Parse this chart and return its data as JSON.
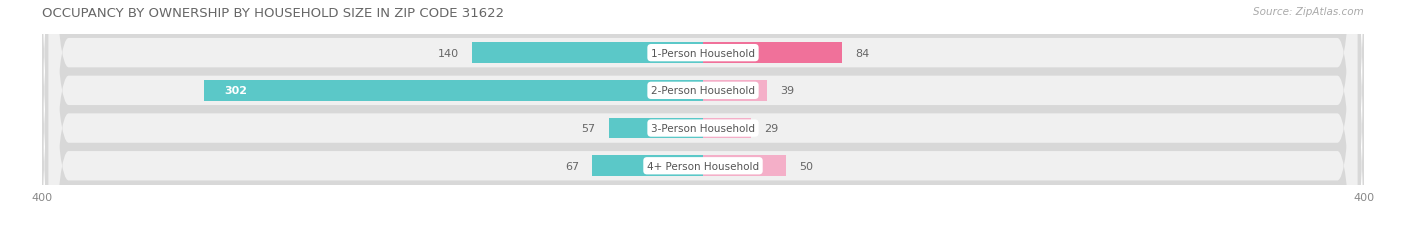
{
  "title": "OCCUPANCY BY OWNERSHIP BY HOUSEHOLD SIZE IN ZIP CODE 31622",
  "source": "Source: ZipAtlas.com",
  "categories": [
    "1-Person Household",
    "2-Person Household",
    "3-Person Household",
    "4+ Person Household"
  ],
  "owner_values": [
    140,
    302,
    57,
    67
  ],
  "renter_values": [
    84,
    39,
    29,
    50
  ],
  "owner_color": "#5bc8c8",
  "renter_color": "#f0719a",
  "renter_color_light": "#f4afc8",
  "axis_max": 400,
  "axis_min": -400,
  "bg_color": "#ffffff",
  "row_bg_color": "#f0f0f0",
  "row_border_color": "#d8d8d8",
  "label_bg_color": "#ffffff",
  "title_fontsize": 9.5,
  "source_fontsize": 7.5,
  "tick_fontsize": 8,
  "bar_label_fontsize": 8,
  "category_fontsize": 7.5,
  "legend_fontsize": 8
}
